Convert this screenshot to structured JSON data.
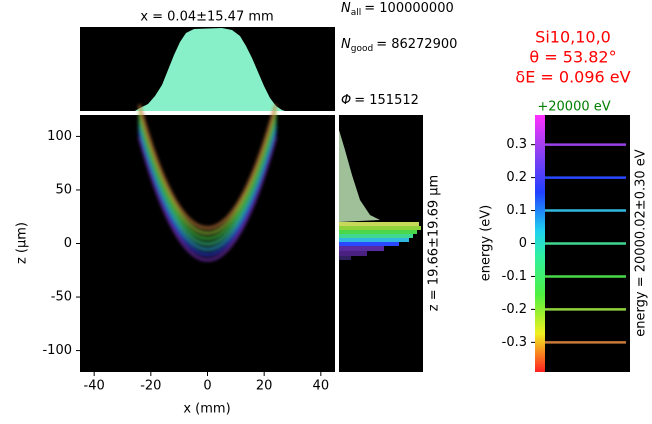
{
  "chart_data": {
    "type": "heatmap",
    "title": "x = 0.04±15.47 mm",
    "x_label": "x (mm)",
    "y_label": "z (μm)",
    "xlim": [
      -45,
      45
    ],
    "xticks": [
      -40,
      -20,
      0,
      20,
      40
    ],
    "ylim": [
      -120,
      120
    ],
    "yticks": [
      -100,
      -50,
      0,
      50,
      100
    ],
    "side_label": "z = 19.66±19.69 μm",
    "stats": [
      {
        "symbol": "N",
        "sub": "all",
        "text": "= 100000000"
      },
      {
        "symbol": "N",
        "sub": "good",
        "text": "= 86272900"
      },
      {
        "symbol": "Φ",
        "text": "= 151512"
      }
    ],
    "header": [
      "Si10,10,0",
      "θ = 53.82°",
      "δE = 0.096 eV"
    ],
    "colorbar": {
      "offset_label": "+20000 eV",
      "label": "energy (eV)",
      "side_label": "energy = 20000.02±0.30 eV",
      "ylim": [
        -0.39,
        0.39
      ],
      "yticks": [
        -0.3,
        -0.2,
        -0.1,
        0.0,
        0.1,
        0.2,
        0.3
      ],
      "energies": [
        -0.3,
        -0.2,
        -0.1,
        0.0,
        0.1,
        0.2,
        0.3
      ],
      "colors": [
        "#c87a3a",
        "#8fd23a",
        "#48d84a",
        "#40d890",
        "#30b8e0",
        "#2a48ff",
        "#9a40e8"
      ]
    }
  }
}
